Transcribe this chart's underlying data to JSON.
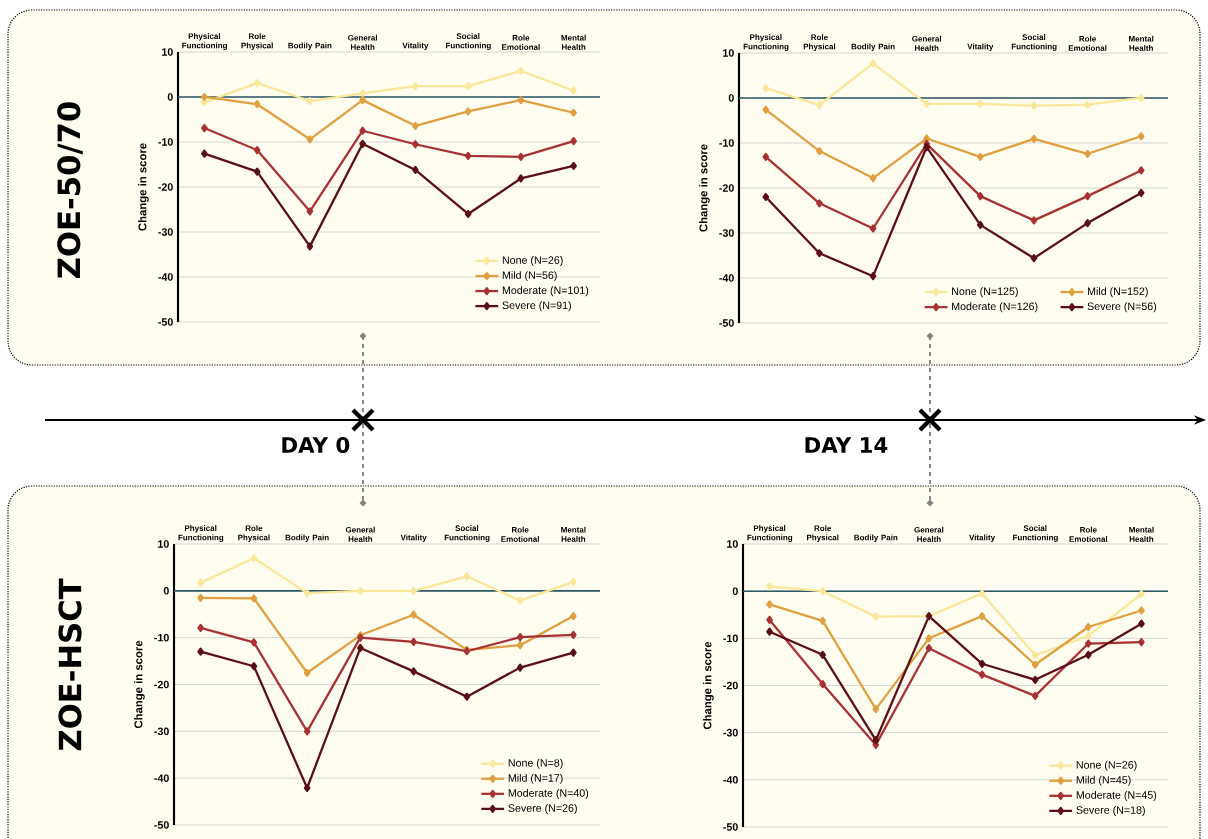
{
  "chart_data": [
    {
      "type": "line",
      "title": "ZOE-50/70",
      "ylabel": "Change in score",
      "annotations": [
        "DAY 0"
      ],
      "categories": [
        "Physical Functioning",
        "Role Physical",
        "Bodily Pain",
        "General Health",
        "Vitality",
        "Social Functioning",
        "Role Emotional",
        "Mental Health"
      ],
      "series": [
        {
          "name": "None (N=26)",
          "color": "#fbe79a",
          "values": [
            -1.2,
            3.1,
            -0.9,
            0.8,
            2.4,
            2.4,
            5.8,
            1.4
          ]
        },
        {
          "name": "Mild (N=56)",
          "color": "#e0a040",
          "values": [
            0,
            -1.6,
            -9.4,
            -0.7,
            -6.4,
            -3.2,
            -0.7,
            -3.5
          ]
        },
        {
          "name": "Moderate (N=101)",
          "color": "#a83232",
          "values": [
            -6.9,
            -11.8,
            -25.4,
            -7.5,
            -10.5,
            -13.1,
            -13.3,
            -9.8
          ]
        },
        {
          "name": "Severe (N=91)",
          "color": "#5a0f14",
          "values": [
            -12.6,
            -16.6,
            -33.2,
            -10.4,
            -16.2,
            -26.0,
            -18.1,
            -15.3
          ]
        }
      ],
      "ylim": [
        -50,
        10
      ],
      "yticks": [
        -50,
        -40,
        -30,
        -20,
        -10,
        0,
        10
      ],
      "grid": "y",
      "legend": "bottom right",
      "marker": "diamond",
      "ref_lines": [
        {
          "axis": "y",
          "value": 0,
          "color": "#2e5866"
        }
      ]
    },
    {
      "type": "line",
      "ylabel": "Change in score",
      "annotations": [
        "DAY 14"
      ],
      "categories": [
        "Physical Functioning",
        "Role Physical",
        "Bodily Pain",
        "General Health",
        "Vitality",
        "Social Functioning",
        "Role Emotional",
        "Mental Health"
      ],
      "series": [
        {
          "name": "None (N=125)",
          "color": "#fbe79a",
          "values": [
            2.2,
            -1.6,
            7.7,
            -1.3,
            -1.3,
            -1.7,
            -1.5,
            0
          ]
        },
        {
          "name": "Mild (N=152)",
          "color": "#e0a040",
          "values": [
            -2.6,
            -11.8,
            -17.8,
            -9.0,
            -13.1,
            -9.1,
            -12.4,
            -8.5
          ]
        },
        {
          "name": "Moderate (N=126)",
          "color": "#a83232",
          "values": [
            -13.1,
            -23.4,
            -29.0,
            -10.2,
            -21.8,
            -27.2,
            -21.8,
            -16.1
          ]
        },
        {
          "name": "Severe (N=56)",
          "color": "#5a0f14",
          "values": [
            -22.0,
            -34.5,
            -39.6,
            -10.9,
            -28.2,
            -35.6,
            -27.8,
            -21.1
          ]
        }
      ],
      "ylim": [
        -50,
        10
      ],
      "yticks": [
        -50,
        -40,
        -30,
        -20,
        -10,
        0,
        10
      ],
      "grid": "y",
      "legend": "bottom",
      "marker": "diamond",
      "ref_lines": [
        {
          "axis": "y",
          "value": 0,
          "color": "#2e5866"
        }
      ]
    },
    {
      "type": "line",
      "title": "ZOE-HSCT",
      "ylabel": "Change in score",
      "categories": [
        "Physical Functioning",
        "Role Physical",
        "Bodily Pain",
        "General Health",
        "Vitality",
        "Social Functioning",
        "Role Emotional",
        "Mental Health"
      ],
      "series": [
        {
          "name": "None (N=8)",
          "color": "#fbe79a",
          "values": [
            1.7,
            7.0,
            -0.5,
            0,
            0,
            3.1,
            -2.1,
            1.9
          ]
        },
        {
          "name": "Mild (N=17)",
          "color": "#e0a040",
          "values": [
            -1.5,
            -1.6,
            -17.5,
            -9.5,
            -5.1,
            -12.6,
            -11.6,
            -5.4
          ]
        },
        {
          "name": "Moderate (N=40)",
          "color": "#a83232",
          "values": [
            -7.9,
            -11.0,
            -30.0,
            -10.0,
            -10.9,
            -12.9,
            -9.9,
            -9.4
          ]
        },
        {
          "name": "Severe (N=26)",
          "color": "#5a0f14",
          "values": [
            -13.0,
            -16.1,
            -42.1,
            -12.2,
            -17.2,
            -22.6,
            -16.4,
            -13.2
          ]
        }
      ],
      "ylim": [
        -50,
        10
      ],
      "yticks": [
        -50,
        -40,
        -30,
        -20,
        -10,
        0,
        10
      ],
      "grid": "y",
      "legend": "bottom right",
      "marker": "diamond",
      "ref_lines": [
        {
          "axis": "y",
          "value": 0,
          "color": "#2e5866"
        }
      ]
    },
    {
      "type": "line",
      "ylabel": "Change in score",
      "categories": [
        "Physical Functioning",
        "Role Physical",
        "Bodily Pain",
        "General Health",
        "Vitality",
        "Social Functioning",
        "Role Emotional",
        "Mental Health"
      ],
      "series": [
        {
          "name": "None (N=26)",
          "color": "#fbe79a",
          "values": [
            1.0,
            0,
            -5.4,
            -5.3,
            -0.5,
            -13.6,
            -9.5,
            -0.6
          ]
        },
        {
          "name": "Mild (N=45)",
          "color": "#e0a040",
          "values": [
            -2.8,
            -6.3,
            -25.0,
            -10.0,
            -5.3,
            -15.6,
            -7.6,
            -4.1
          ]
        },
        {
          "name": "Moderate (N=45)",
          "color": "#a83232",
          "values": [
            -6.1,
            -19.7,
            -32.6,
            -12.1,
            -17.7,
            -22.2,
            -11.1,
            -10.8
          ]
        },
        {
          "name": "Severe (N=18)",
          "color": "#5a0f14",
          "values": [
            -8.6,
            -13.5,
            -31.6,
            -5.3,
            -15.4,
            -18.8,
            -13.5,
            -6.9
          ]
        }
      ],
      "ylim": [
        -50,
        10
      ],
      "yticks": [
        -50,
        -40,
        -30,
        -20,
        -10,
        0,
        10
      ],
      "grid": "y",
      "legend": "bottom right",
      "marker": "diamond",
      "ref_lines": [
        {
          "axis": "y",
          "value": 0,
          "color": "#2e5866"
        }
      ]
    }
  ]
}
